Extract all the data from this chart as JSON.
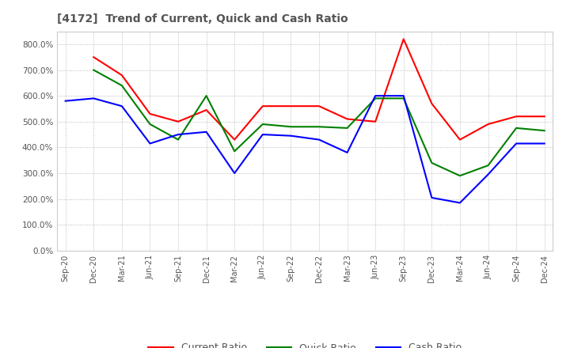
{
  "title": "[4172]  Trend of Current, Quick and Cash Ratio",
  "x_labels": [
    "Sep-20",
    "Dec-20",
    "Mar-21",
    "Jun-21",
    "Sep-21",
    "Dec-21",
    "Mar-22",
    "Jun-22",
    "Sep-22",
    "Dec-22",
    "Mar-23",
    "Jun-23",
    "Sep-23",
    "Dec-23",
    "Mar-24",
    "Jun-24",
    "Sep-24",
    "Dec-24"
  ],
  "current_ratio": [
    null,
    750,
    680,
    530,
    500,
    545,
    430,
    560,
    560,
    560,
    510,
    500,
    820,
    570,
    430,
    490,
    520,
    520
  ],
  "quick_ratio": [
    null,
    700,
    640,
    490,
    430,
    600,
    385,
    490,
    480,
    480,
    475,
    590,
    590,
    340,
    290,
    330,
    475,
    465
  ],
  "cash_ratio": [
    580,
    590,
    560,
    415,
    450,
    460,
    300,
    450,
    445,
    430,
    380,
    600,
    600,
    205,
    185,
    295,
    415,
    415
  ],
  "current_color": "#FF0000",
  "quick_color": "#008000",
  "cash_color": "#0000FF",
  "ylim": [
    0,
    850
  ],
  "yticks": [
    0,
    100,
    200,
    300,
    400,
    500,
    600,
    700,
    800
  ],
  "background_color": "#ffffff",
  "grid_color": "#aaaaaa",
  "title_color": "#555555",
  "tick_color": "#555555"
}
